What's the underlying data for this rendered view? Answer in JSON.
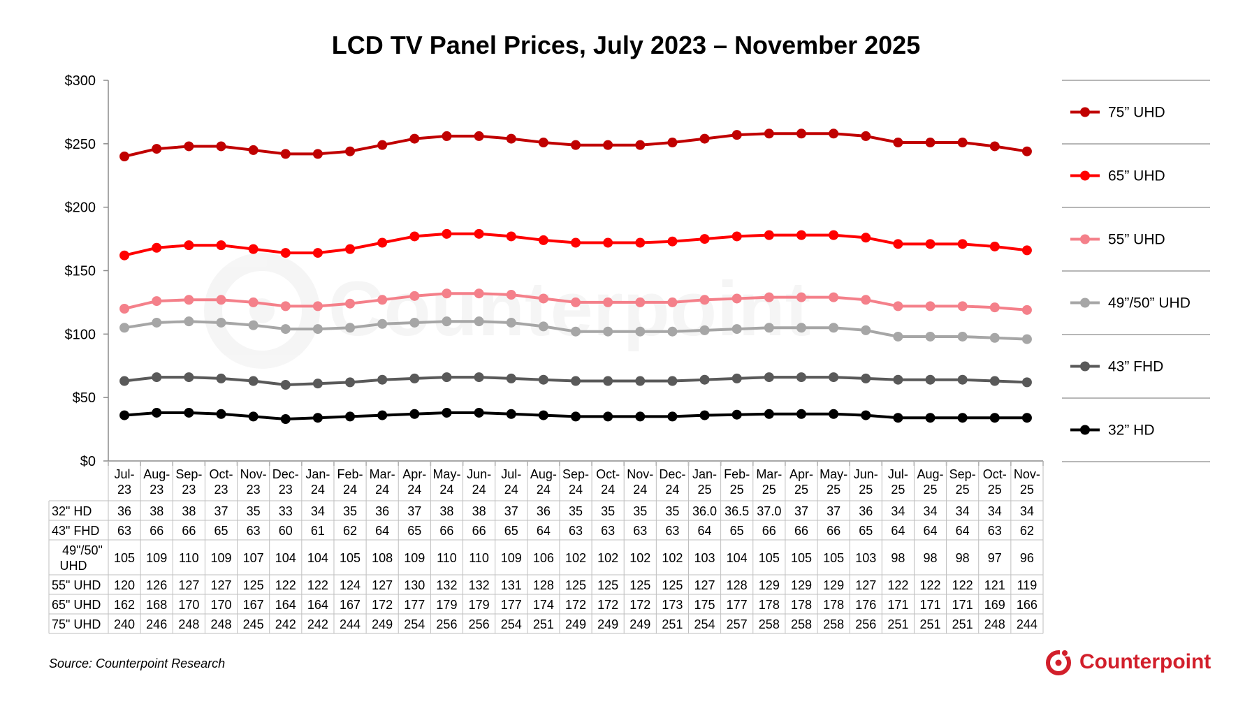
{
  "chart_data": {
    "type": "line",
    "title": "LCD TV Panel Prices, July 2023 – November 2025",
    "xlabel": "",
    "ylabel": "",
    "ylim": [
      0,
      300
    ],
    "yticks": [
      "$0",
      "$50",
      "$100",
      "$150",
      "$200",
      "$250",
      "$300"
    ],
    "grid": false,
    "legend_position": "right",
    "x": [
      [
        "Jul-",
        "23"
      ],
      [
        "Aug-",
        "23"
      ],
      [
        "Sep-",
        "23"
      ],
      [
        "Oct-",
        "23"
      ],
      [
        "Nov-",
        "23"
      ],
      [
        "Dec-",
        "23"
      ],
      [
        "Jan-",
        "24"
      ],
      [
        "Feb-",
        "24"
      ],
      [
        "Mar-",
        "24"
      ],
      [
        "Apr-",
        "24"
      ],
      [
        "May-",
        "24"
      ],
      [
        "Jun-",
        "24"
      ],
      [
        "Jul-",
        "24"
      ],
      [
        "Aug-",
        "24"
      ],
      [
        "Sep-",
        "24"
      ],
      [
        "Oct-",
        "24"
      ],
      [
        "Nov-",
        "24"
      ],
      [
        "Dec-",
        "24"
      ],
      [
        "Jan-",
        "25"
      ],
      [
        "Feb-",
        "25"
      ],
      [
        "Mar-",
        "25"
      ],
      [
        "Apr-",
        "25"
      ],
      [
        "May-",
        "25"
      ],
      [
        "Jun-",
        "25"
      ],
      [
        "Jul-",
        "25"
      ],
      [
        "Aug-",
        "25"
      ],
      [
        "Sep-",
        "25"
      ],
      [
        "Oct-",
        "25"
      ],
      [
        "Nov-",
        "25"
      ]
    ],
    "series": [
      {
        "name": "75” UHD",
        "table_name": "75\" UHD",
        "color": "#c00000",
        "values": [
          240,
          246,
          248,
          248,
          245,
          242,
          242,
          244,
          249,
          254,
          256,
          256,
          254,
          251,
          249,
          249,
          249,
          251,
          254,
          257,
          258,
          258,
          258,
          256,
          251,
          251,
          251,
          248,
          244
        ],
        "table_values": [
          "240",
          "246",
          "248",
          "248",
          "245",
          "242",
          "242",
          "244",
          "249",
          "254",
          "256",
          "256",
          "254",
          "251",
          "249",
          "249",
          "249",
          "251",
          "254",
          "257",
          "258",
          "258",
          "258",
          "256",
          "251",
          "251",
          "251",
          "248",
          "244"
        ]
      },
      {
        "name": "65” UHD",
        "table_name": "65\" UHD",
        "color": "#ff0000",
        "values": [
          162,
          168,
          170,
          170,
          167,
          164,
          164,
          167,
          172,
          177,
          179,
          179,
          177,
          174,
          172,
          172,
          172,
          173,
          175,
          177,
          178,
          178,
          178,
          176,
          171,
          171,
          171,
          169,
          166
        ],
        "table_values": [
          "162",
          "168",
          "170",
          "170",
          "167",
          "164",
          "164",
          "167",
          "172",
          "177",
          "179",
          "179",
          "177",
          "174",
          "172",
          "172",
          "172",
          "173",
          "175",
          "177",
          "178",
          "178",
          "178",
          "176",
          "171",
          "171",
          "171",
          "169",
          "166"
        ]
      },
      {
        "name": "55” UHD",
        "table_name": "55\" UHD",
        "color": "#f4808a",
        "values": [
          120,
          126,
          127,
          127,
          125,
          122,
          122,
          124,
          127,
          130,
          132,
          132,
          131,
          128,
          125,
          125,
          125,
          125,
          127,
          128,
          129,
          129,
          129,
          127,
          122,
          122,
          122,
          121,
          119
        ],
        "table_values": [
          "120",
          "126",
          "127",
          "127",
          "125",
          "122",
          "122",
          "124",
          "127",
          "130",
          "132",
          "132",
          "131",
          "128",
          "125",
          "125",
          "125",
          "125",
          "127",
          "128",
          "129",
          "129",
          "129",
          "127",
          "122",
          "122",
          "122",
          "121",
          "119"
        ]
      },
      {
        "name": "49”/50” UHD",
        "table_name": "49\"/50\" UHD",
        "color": "#a6a6a6",
        "values": [
          105,
          109,
          110,
          109,
          107,
          104,
          104,
          105,
          108,
          109,
          110,
          110,
          109,
          106,
          102,
          102,
          102,
          102,
          103,
          104,
          105,
          105,
          105,
          103,
          98,
          98,
          98,
          97,
          96
        ],
        "table_values": [
          "105",
          "109",
          "110",
          "109",
          "107",
          "104",
          "104",
          "105",
          "108",
          "109",
          "110",
          "110",
          "109",
          "106",
          "102",
          "102",
          "102",
          "102",
          "103",
          "104",
          "105",
          "105",
          "105",
          "103",
          "98",
          "98",
          "98",
          "97",
          "96"
        ]
      },
      {
        "name": "43” FHD",
        "table_name": "43\" FHD",
        "color": "#595959",
        "values": [
          63,
          66,
          66,
          65,
          63,
          60,
          61,
          62,
          64,
          65,
          66,
          66,
          65,
          64,
          63,
          63,
          63,
          63,
          64,
          65,
          66,
          66,
          66,
          65,
          64,
          64,
          64,
          63,
          62
        ],
        "table_values": [
          "63",
          "66",
          "66",
          "65",
          "63",
          "60",
          "61",
          "62",
          "64",
          "65",
          "66",
          "66",
          "65",
          "64",
          "63",
          "63",
          "63",
          "63",
          "64",
          "65",
          "66",
          "66",
          "66",
          "65",
          "64",
          "64",
          "64",
          "63",
          "62"
        ]
      },
      {
        "name": "32” HD",
        "table_name": "32\" HD",
        "color": "#000000",
        "values": [
          36,
          38,
          38,
          37,
          35,
          33,
          34,
          35,
          36,
          37,
          38,
          38,
          37,
          36,
          35,
          35,
          35,
          35,
          36.0,
          36.5,
          37.0,
          37,
          37,
          36,
          34,
          34,
          34,
          34,
          34
        ],
        "table_values": [
          "36",
          "38",
          "38",
          "37",
          "35",
          "33",
          "34",
          "35",
          "36",
          "37",
          "38",
          "38",
          "37",
          "36",
          "35",
          "35",
          "35",
          "35",
          "36.0",
          "36.5",
          "37.0",
          "37",
          "37",
          "36",
          "34",
          "34",
          "34",
          "34",
          "34"
        ]
      }
    ],
    "table_row_order": [
      5,
      4,
      3,
      2,
      1,
      0
    ]
  },
  "source": "Source: Counterpoint Research",
  "brand": {
    "name": "Counterpoint",
    "color": "#d21f2b"
  },
  "watermark": "Counterpoint"
}
